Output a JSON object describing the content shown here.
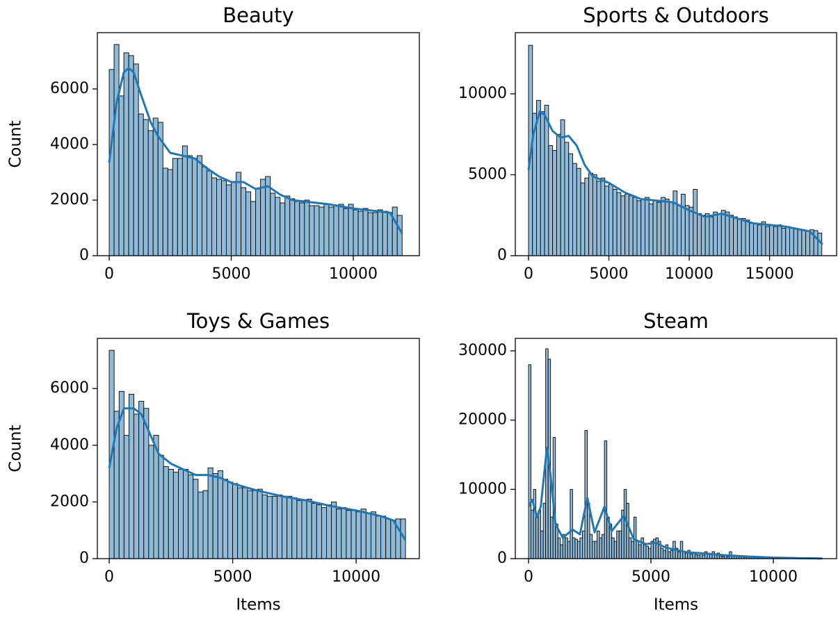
{
  "chart_data": [
    {
      "type": "histogram",
      "title": "Beauty",
      "ylabel": "Count",
      "bins": [
        0,
        200,
        400,
        600,
        800,
        1000,
        1200,
        1400,
        1600,
        1800,
        2000,
        2200,
        2400,
        2600,
        2800,
        3000,
        3200,
        3400,
        3600,
        3800,
        4000,
        4200,
        4400,
        4600,
        4800,
        5000,
        5200,
        5400,
        5600,
        5800,
        6000,
        6200,
        6400,
        6600,
        6800,
        7000,
        7200,
        7400,
        7600,
        7800,
        8000,
        8200,
        8400,
        8600,
        8800,
        9000,
        9200,
        9400,
        9600,
        9800,
        10000,
        10200,
        10400,
        10600,
        10800,
        11000,
        11200,
        11400,
        11600,
        11800,
        12000
      ],
      "values": [
        6700,
        7600,
        5750,
        7300,
        7200,
        6900,
        5100,
        4900,
        4500,
        4950,
        4800,
        3150,
        3100,
        3500,
        3500,
        3950,
        3600,
        3500,
        3600,
        3200,
        3050,
        2800,
        2750,
        2700,
        2550,
        2650,
        3000,
        2450,
        2300,
        1950,
        2400,
        2750,
        2850,
        2250,
        2100,
        1900,
        2150,
        2050,
        1950,
        1900,
        2000,
        1800,
        1800,
        1750,
        1850,
        1750,
        1800,
        1850,
        1700,
        1850,
        1650,
        1600,
        1700,
        1550,
        1550,
        1650,
        1600,
        1550,
        1750,
        1450
      ],
      "color": "#8fbbd9",
      "edgecolor": "#000000",
      "kde": {
        "color": "#1f77b4",
        "x": [
          0,
          300,
          600,
          800,
          1000,
          1300,
          1700,
          2000,
          2500,
          3000,
          3500,
          4000,
          4500,
          5000,
          5500,
          6000,
          6500,
          7000,
          7500,
          8000,
          9000,
          10000,
          11000,
          11500,
          12000
        ],
        "values": [
          3350,
          5500,
          6600,
          6750,
          6600,
          5800,
          4800,
          4300,
          3700,
          3600,
          3500,
          3150,
          2850,
          2650,
          2650,
          2400,
          2500,
          2200,
          2000,
          1950,
          1850,
          1700,
          1600,
          1550,
          800
        ]
      },
      "xlim": [
        -485,
        12705
      ],
      "ylim": [
        0,
        8025
      ],
      "xticks": [
        0,
        5000,
        10000
      ],
      "yticks": [
        0,
        2000,
        4000,
        6000
      ]
    },
    {
      "type": "histogram",
      "title": "Sports & Outdoors",
      "bins": [
        0,
        250,
        500,
        750,
        1000,
        1250,
        1500,
        1750,
        2000,
        2250,
        2500,
        2750,
        3000,
        3250,
        3500,
        3750,
        4000,
        4250,
        4500,
        4750,
        5000,
        5250,
        5500,
        5750,
        6000,
        6250,
        6500,
        6750,
        7000,
        7250,
        7500,
        7750,
        8000,
        8250,
        8500,
        8750,
        9000,
        9250,
        9500,
        9750,
        10000,
        10250,
        10500,
        10750,
        11000,
        11250,
        11500,
        11750,
        12000,
        12250,
        12500,
        12750,
        13000,
        13250,
        13500,
        13750,
        14000,
        14250,
        14500,
        14750,
        15000,
        15250,
        15500,
        15750,
        16000,
        16250,
        16500,
        16750,
        17000,
        17250,
        17500,
        17750,
        18000,
        18250
      ],
      "values": [
        13000,
        8800,
        9600,
        8900,
        9300,
        6800,
        6500,
        7500,
        8400,
        7000,
        6300,
        5700,
        5400,
        4500,
        4800,
        5100,
        5000,
        4600,
        4800,
        4300,
        4400,
        4100,
        3900,
        3700,
        3800,
        3700,
        3600,
        3400,
        3500,
        3600,
        3200,
        3400,
        3300,
        3600,
        3500,
        3300,
        4000,
        3100,
        3800,
        3100,
        3000,
        4100,
        2600,
        2500,
        2600,
        2400,
        2700,
        2600,
        2800,
        2700,
        2500,
        2400,
        2300,
        2300,
        2200,
        2000,
        2000,
        1900,
        2100,
        1800,
        1900,
        1800,
        1900,
        1700,
        1800,
        1700,
        1700,
        1600,
        1600,
        1500,
        1600,
        1550,
        1400
      ],
      "color": "#8fbbd9",
      "edgecolor": "#000000",
      "kde": {
        "color": "#1f77b4",
        "x": [
          0,
          300,
          700,
          1000,
          1500,
          2000,
          2500,
          3000,
          3500,
          4000,
          5000,
          6000,
          7000,
          8000,
          9000,
          10000,
          11000,
          12000,
          13000,
          14000,
          15000,
          16000,
          17000,
          17500,
          18300
        ],
        "values": [
          5300,
          7500,
          8900,
          8700,
          7700,
          7300,
          7400,
          6800,
          5600,
          4900,
          4500,
          3900,
          3500,
          3400,
          3300,
          2800,
          2400,
          2600,
          2300,
          2000,
          1900,
          1800,
          1600,
          1500,
          700
        ]
      },
      "xlim": [
        -820,
        19170
      ],
      "ylim": [
        0,
        13780
      ],
      "xticks": [
        0,
        5000,
        10000,
        15000
      ],
      "yticks": [
        0,
        5000,
        10000
      ]
    },
    {
      "type": "histogram",
      "title": "Toys & Games",
      "ylabel": "Count",
      "xlabel": "Items",
      "bins": [
        0,
        200,
        400,
        600,
        800,
        1000,
        1200,
        1400,
        1600,
        1800,
        2000,
        2200,
        2400,
        2600,
        2800,
        3000,
        3200,
        3400,
        3600,
        3800,
        4000,
        4200,
        4400,
        4600,
        4800,
        5000,
        5200,
        5400,
        5600,
        5800,
        6000,
        6200,
        6400,
        6600,
        6800,
        7000,
        7200,
        7400,
        7600,
        7800,
        8000,
        8200,
        8400,
        8600,
        8800,
        9000,
        9200,
        9400,
        9600,
        9800,
        10000,
        10200,
        10400,
        10600,
        10800,
        11000,
        11200,
        11400,
        11600,
        11800,
        12000
      ],
      "values": [
        7350,
        5200,
        5900,
        4350,
        5800,
        5100,
        5550,
        5300,
        4000,
        4350,
        3650,
        3250,
        3150,
        3050,
        3150,
        3150,
        2950,
        2800,
        2350,
        2400,
        3200,
        3000,
        3100,
        2800,
        2700,
        2650,
        2500,
        2500,
        2400,
        2400,
        2450,
        2250,
        2200,
        2200,
        2250,
        2200,
        2200,
        2150,
        2050,
        2050,
        2100,
        1950,
        1900,
        1800,
        1900,
        2000,
        1750,
        1800,
        1700,
        1700,
        1650,
        1750,
        1600,
        1650,
        1500,
        1500,
        1400,
        1350,
        1400,
        1400
      ],
      "color": "#8fbbd9",
      "edgecolor": "#000000",
      "kde": {
        "color": "#1f77b4",
        "x": [
          0,
          300,
          600,
          1000,
          1300,
          1700,
          2000,
          2500,
          3000,
          3500,
          4000,
          4500,
          5000,
          6000,
          7000,
          8000,
          9000,
          10000,
          11000,
          11500,
          12000
        ],
        "values": [
          3200,
          4600,
          5300,
          5300,
          5100,
          4300,
          3700,
          3350,
          3150,
          2950,
          2950,
          2850,
          2650,
          2400,
          2200,
          2050,
          1850,
          1700,
          1500,
          1350,
          650
        ]
      },
      "xlim": [
        -480,
        12560
      ],
      "ylim": [
        0,
        7770
      ],
      "xticks": [
        0,
        5000,
        10000
      ],
      "yticks": [
        0,
        2000,
        4000,
        6000
      ]
    },
    {
      "type": "histogram",
      "title": "Steam",
      "xlabel": "Items",
      "bins": [
        0,
        100,
        200,
        300,
        400,
        500,
        600,
        700,
        800,
        900,
        1000,
        1100,
        1200,
        1300,
        1400,
        1500,
        1600,
        1700,
        1800,
        1900,
        2000,
        2100,
        2200,
        2300,
        2400,
        2500,
        2600,
        2700,
        2800,
        2900,
        3000,
        3100,
        3200,
        3300,
        3400,
        3500,
        3600,
        3700,
        3800,
        3900,
        4000,
        4100,
        4200,
        4300,
        4400,
        4500,
        4600,
        4700,
        4800,
        4900,
        5000,
        5100,
        5200,
        5300,
        5400,
        5500,
        5600,
        5700,
        5800,
        5900,
        6000,
        6100,
        6200,
        6300,
        6400,
        6500,
        6600,
        6700,
        6800,
        6900,
        7000,
        7100,
        7200,
        7300,
        7400,
        7500,
        7600,
        7700,
        7800,
        7900,
        8000,
        8100,
        8200,
        8300,
        8400,
        8500,
        8600,
        8700,
        8800,
        8900,
        9000,
        9100,
        9200,
        9300,
        9400,
        9500,
        9600,
        9700,
        9800,
        9900,
        10000,
        10100,
        10200,
        10300,
        10400,
        10500,
        10600,
        10700,
        10800,
        10900,
        11000,
        11100,
        11200,
        11300,
        11400,
        11500,
        11600,
        11700,
        11800,
        11900,
        12000
      ],
      "values": [
        28000,
        7000,
        10000,
        6000,
        7000,
        4000,
        8000,
        30300,
        28800,
        6000,
        17500,
        5000,
        3000,
        2000,
        3500,
        3000,
        2500,
        10000,
        3000,
        2800,
        2500,
        3000,
        4000,
        18500,
        8000,
        3500,
        2500,
        2500,
        4000,
        3000,
        3500,
        17000,
        6000,
        5000,
        3000,
        2500,
        4000,
        4000,
        7000,
        10000,
        8000,
        3000,
        2500,
        6000,
        2500,
        2000,
        3000,
        2000,
        1800,
        1500,
        2500,
        2800,
        3000,
        2500,
        1500,
        1200,
        2000,
        1000,
        1200,
        2500,
        1500,
        1000,
        2500,
        1000,
        800,
        1200,
        700,
        800,
        600,
        500,
        700,
        500,
        1000,
        800,
        600,
        1000,
        500,
        800,
        400,
        300,
        500,
        300,
        1000,
        400,
        300,
        300,
        250,
        250,
        200,
        200,
        200,
        200,
        150,
        150,
        150,
        100,
        100,
        100,
        100,
        100,
        100,
        80,
        80,
        80,
        60,
        60,
        60,
        50,
        50,
        50,
        40,
        40,
        40,
        30,
        30,
        30,
        20,
        20,
        20,
        20
      ],
      "color": "#8fbbd9",
      "edgecolor": "#000000",
      "kde": {
        "color": "#1f77b4",
        "x": [
          0,
          150,
          350,
          500,
          750,
          900,
          1100,
          1400,
          1800,
          2100,
          2400,
          2700,
          3100,
          3400,
          3900,
          4300,
          4800,
          5200,
          5600,
          6000,
          6500,
          7000,
          8000,
          9000,
          10000,
          11000,
          12000
        ],
        "values": [
          7500,
          8500,
          6000,
          7500,
          16000,
          12000,
          5000,
          3000,
          4200,
          3500,
          8800,
          3800,
          7500,
          4000,
          6200,
          2800,
          2100,
          2300,
          1600,
          1300,
          900,
          800,
          500,
          300,
          150,
          80,
          30
        ]
      },
      "xlim": [
        -540,
        12585
      ],
      "ylim": [
        0,
        31800
      ],
      "xticks": [
        0,
        5000,
        10000
      ],
      "yticks": [
        0,
        10000,
        20000,
        30000
      ]
    }
  ]
}
